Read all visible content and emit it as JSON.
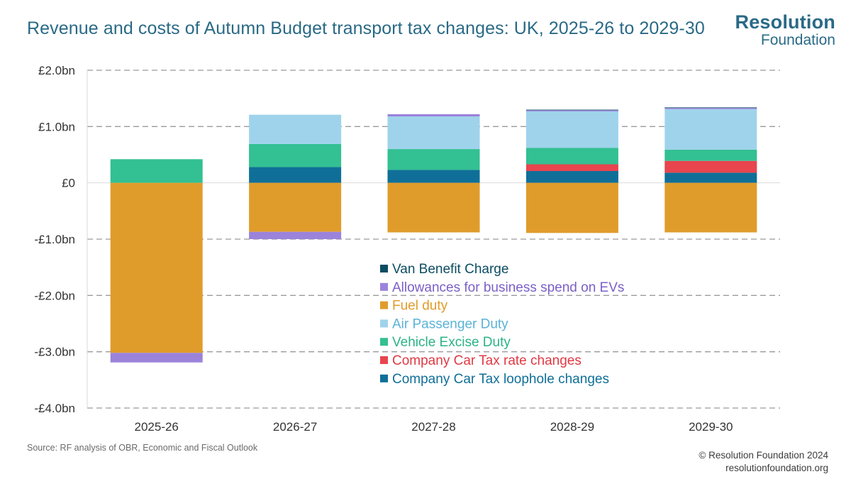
{
  "header": {
    "title": "Revenue and costs of Autumn Budget transport tax changes: UK, 2025-26 to 2029-30",
    "logo_line1": "Resolution",
    "logo_line2": "Foundation"
  },
  "footer": {
    "source": "Source: RF analysis of OBR, Economic and Fiscal Outlook",
    "copyright": "© Resolution Foundation 2024",
    "website": "resolutionfoundation.org"
  },
  "chart_data": {
    "type": "bar",
    "stacked": true,
    "title": "Revenue and costs of Autumn Budget transport tax changes: UK, 2025-26 to 2029-30",
    "xlabel": "",
    "ylabel": "",
    "ylim": [
      -4.0,
      2.0
    ],
    "yticks": [
      2.0,
      1.0,
      0,
      -1.0,
      -2.0,
      -3.0,
      -4.0
    ],
    "ytick_labels": [
      "£2.0bn",
      "£1.0bn",
      "£0",
      "-£1.0bn",
      "-£2.0bn",
      "-£3.0bn",
      "-£4.0bn"
    ],
    "grid": "horizontal dashed",
    "categories": [
      "2025-26",
      "2026-27",
      "2027-28",
      "2028-29",
      "2029-30"
    ],
    "series": [
      {
        "name": "Company Car Tax loophole changes",
        "color": "#0f6f98",
        "values": [
          0,
          0.28,
          0.23,
          0.21,
          0.18
        ]
      },
      {
        "name": "Company Car Tax rate changes",
        "color": "#e8454e",
        "values": [
          0,
          0,
          0,
          0.12,
          0.21
        ]
      },
      {
        "name": "Vehicle Excise Duty",
        "color": "#33c093",
        "values": [
          0.42,
          0.41,
          0.37,
          0.29,
          0.2
        ]
      },
      {
        "name": "Air Passenger Duty",
        "color": "#9fd3eb",
        "values": [
          0,
          0.52,
          0.58,
          0.65,
          0.72
        ]
      },
      {
        "name": "Fuel duty",
        "color": "#e09c2b",
        "values": [
          -3.02,
          -0.87,
          -0.88,
          -0.89,
          -0.88
        ]
      },
      {
        "name": "Allowances for business spend on EVs",
        "color": "#9b83db",
        "values": [
          -0.17,
          -0.13,
          0.04,
          0.02,
          0.02
        ]
      },
      {
        "name": "Van Benefit Charge",
        "color": "#0b4d62",
        "values": [
          0,
          0,
          0,
          0.01,
          0.01
        ]
      }
    ],
    "legend": {
      "placement": "center-bottom",
      "order": [
        "Van Benefit Charge",
        "Allowances for business spend on EVs",
        "Fuel duty",
        "Air Passenger Duty",
        "Vehicle Excise Duty",
        "Company Car Tax rate changes",
        "Company Car Tax loophole changes"
      ],
      "text_colors": [
        "#0b4d62",
        "#7b5fc8",
        "#e09c2b",
        "#5ab3d8",
        "#2bb386",
        "#e03a44",
        "#0f6f98"
      ]
    }
  }
}
